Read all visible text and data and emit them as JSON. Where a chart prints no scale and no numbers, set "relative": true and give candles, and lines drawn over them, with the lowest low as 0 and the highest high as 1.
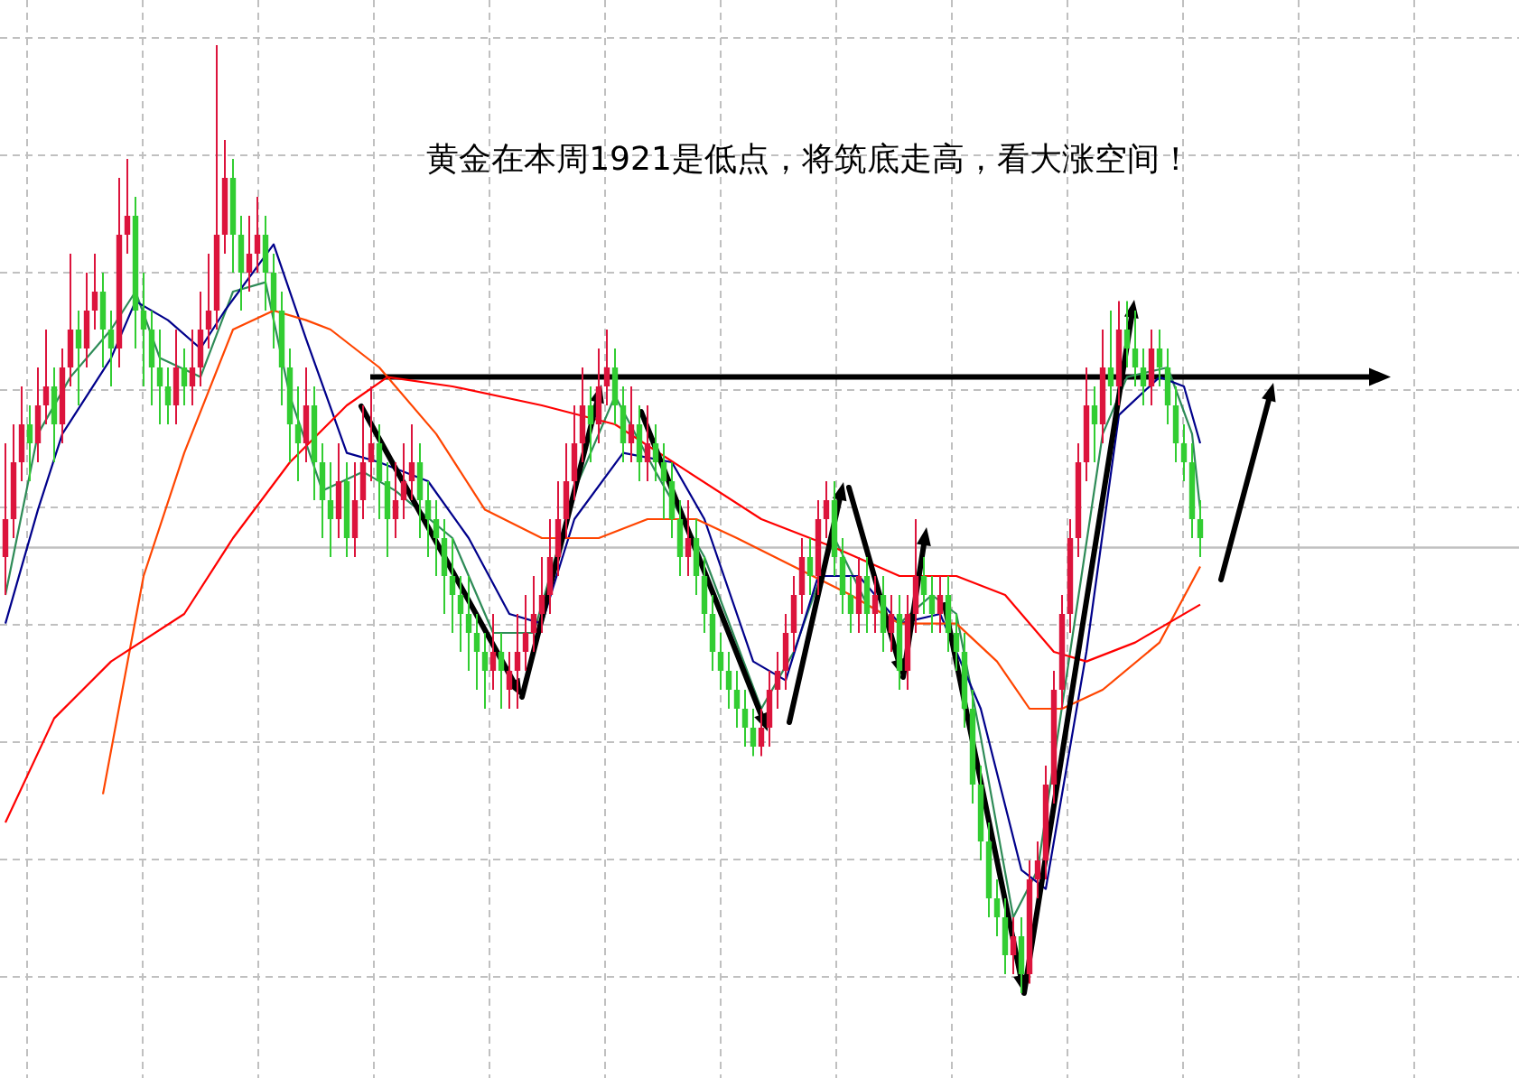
{
  "chart_data": {
    "type": "candlestick",
    "title": "黄金在本周1921是低点，将筑底走高，看大涨空间！",
    "relative": true,
    "grid": true,
    "categories": [
      null,
      null,
      null,
      null,
      null,
      null,
      null,
      null,
      null,
      null,
      null,
      null,
      null,
      null,
      null,
      null,
      null,
      null,
      null,
      null,
      null,
      null,
      null,
      null,
      null,
      null,
      null,
      null,
      null,
      null,
      null,
      null,
      null,
      null,
      null,
      null,
      null,
      null,
      null,
      null,
      null,
      null,
      null,
      null,
      null,
      null,
      null,
      null,
      null,
      null,
      null,
      null,
      null,
      null,
      null,
      null,
      null,
      null,
      null,
      null,
      null,
      null,
      null,
      null,
      null,
      null,
      null,
      null,
      null,
      null,
      null,
      null,
      null,
      null,
      null,
      null,
      null,
      null,
      null,
      null,
      null,
      null,
      null,
      null,
      null,
      null,
      null,
      null,
      null,
      null,
      null,
      null,
      null,
      null,
      null,
      null,
      null,
      null,
      null,
      null,
      null,
      null,
      null,
      null,
      null,
      null,
      null,
      null,
      null,
      null,
      null,
      null,
      null,
      null,
      null,
      null,
      null,
      null,
      null,
      null,
      null,
      null,
      null,
      null,
      null,
      null,
      null,
      null,
      null,
      null,
      null,
      null,
      null,
      null,
      null,
      null,
      null,
      null,
      null,
      null,
      null,
      null,
      null,
      null,
      null,
      null,
      null,
      null
    ],
    "ohlc": [
      [
        0.46,
        0.58,
        0.42,
        0.5
      ],
      [
        0.5,
        0.6,
        0.48,
        0.56
      ],
      [
        0.56,
        0.64,
        0.54,
        0.6
      ],
      [
        0.6,
        0.62,
        0.54,
        0.58
      ],
      [
        0.58,
        0.66,
        0.56,
        0.62
      ],
      [
        0.62,
        0.7,
        0.6,
        0.64
      ],
      [
        0.64,
        0.66,
        0.56,
        0.6
      ],
      [
        0.6,
        0.68,
        0.58,
        0.66
      ],
      [
        0.66,
        0.78,
        0.64,
        0.7
      ],
      [
        0.7,
        0.72,
        0.62,
        0.68
      ],
      [
        0.68,
        0.76,
        0.66,
        0.72
      ],
      [
        0.72,
        0.78,
        0.7,
        0.74
      ],
      [
        0.74,
        0.76,
        0.66,
        0.7
      ],
      [
        0.7,
        0.72,
        0.64,
        0.68
      ],
      [
        0.68,
        0.86,
        0.66,
        0.8
      ],
      [
        0.8,
        0.88,
        0.78,
        0.82
      ],
      [
        0.82,
        0.84,
        0.68,
        0.72
      ],
      [
        0.72,
        0.76,
        0.64,
        0.7
      ],
      [
        0.7,
        0.72,
        0.62,
        0.66
      ],
      [
        0.66,
        0.7,
        0.6,
        0.64
      ],
      [
        0.64,
        0.66,
        0.6,
        0.62
      ],
      [
        0.62,
        0.7,
        0.6,
        0.66
      ],
      [
        0.66,
        0.68,
        0.62,
        0.64
      ],
      [
        0.64,
        0.7,
        0.62,
        0.66
      ],
      [
        0.66,
        0.74,
        0.64,
        0.7
      ],
      [
        0.7,
        0.78,
        0.68,
        0.72
      ],
      [
        0.72,
        1.0,
        0.7,
        0.8
      ],
      [
        0.8,
        0.9,
        0.78,
        0.86
      ],
      [
        0.86,
        0.88,
        0.76,
        0.8
      ],
      [
        0.8,
        0.82,
        0.72,
        0.76
      ],
      [
        0.76,
        0.82,
        0.74,
        0.78
      ],
      [
        0.78,
        0.84,
        0.76,
        0.8
      ],
      [
        0.8,
        0.82,
        0.72,
        0.76
      ],
      [
        0.76,
        0.78,
        0.68,
        0.72
      ],
      [
        0.72,
        0.74,
        0.62,
        0.66
      ],
      [
        0.66,
        0.68,
        0.56,
        0.6
      ],
      [
        0.6,
        0.64,
        0.54,
        0.58
      ],
      [
        0.58,
        0.66,
        0.56,
        0.62
      ],
      [
        0.62,
        0.64,
        0.52,
        0.56
      ],
      [
        0.56,
        0.58,
        0.48,
        0.52
      ],
      [
        0.52,
        0.56,
        0.46,
        0.5
      ],
      [
        0.5,
        0.58,
        0.48,
        0.54
      ],
      [
        0.54,
        0.56,
        0.46,
        0.48
      ],
      [
        0.48,
        0.56,
        0.46,
        0.52
      ],
      [
        0.52,
        0.62,
        0.5,
        0.56
      ],
      [
        0.56,
        0.64,
        0.54,
        0.58
      ],
      [
        0.58,
        0.6,
        0.5,
        0.54
      ],
      [
        0.54,
        0.56,
        0.46,
        0.5
      ],
      [
        0.5,
        0.56,
        0.48,
        0.52
      ],
      [
        0.52,
        0.58,
        0.5,
        0.54
      ],
      [
        0.54,
        0.6,
        0.52,
        0.56
      ],
      [
        0.56,
        0.58,
        0.48,
        0.52
      ],
      [
        0.52,
        0.54,
        0.46,
        0.5
      ],
      [
        0.5,
        0.52,
        0.44,
        0.48
      ],
      [
        0.48,
        0.5,
        0.4,
        0.44
      ],
      [
        0.44,
        0.48,
        0.38,
        0.42
      ],
      [
        0.42,
        0.44,
        0.36,
        0.4
      ],
      [
        0.4,
        0.44,
        0.34,
        0.38
      ],
      [
        0.38,
        0.4,
        0.32,
        0.36
      ],
      [
        0.36,
        0.38,
        0.3,
        0.34
      ],
      [
        0.34,
        0.4,
        0.32,
        0.36
      ],
      [
        0.36,
        0.38,
        0.3,
        0.34
      ],
      [
        0.32,
        0.36,
        0.3,
        0.34
      ],
      [
        0.34,
        0.4,
        0.3,
        0.36
      ],
      [
        0.36,
        0.42,
        0.34,
        0.38
      ],
      [
        0.38,
        0.44,
        0.36,
        0.4
      ],
      [
        0.4,
        0.46,
        0.38,
        0.42
      ],
      [
        0.42,
        0.5,
        0.4,
        0.46
      ],
      [
        0.46,
        0.54,
        0.44,
        0.5
      ],
      [
        0.5,
        0.58,
        0.48,
        0.54
      ],
      [
        0.54,
        0.62,
        0.52,
        0.58
      ],
      [
        0.58,
        0.66,
        0.56,
        0.62
      ],
      [
        0.62,
        0.64,
        0.56,
        0.6
      ],
      [
        0.6,
        0.68,
        0.58,
        0.64
      ],
      [
        0.64,
        0.7,
        0.62,
        0.66
      ],
      [
        0.66,
        0.68,
        0.6,
        0.62
      ],
      [
        0.62,
        0.64,
        0.56,
        0.58
      ],
      [
        0.58,
        0.64,
        0.56,
        0.6
      ],
      [
        0.6,
        0.62,
        0.54,
        0.56
      ],
      [
        0.56,
        0.62,
        0.54,
        0.58
      ],
      [
        0.58,
        0.6,
        0.54,
        0.56
      ],
      [
        0.56,
        0.58,
        0.5,
        0.54
      ],
      [
        0.54,
        0.56,
        0.48,
        0.5
      ],
      [
        0.5,
        0.52,
        0.44,
        0.46
      ],
      [
        0.46,
        0.52,
        0.44,
        0.48
      ],
      [
        0.48,
        0.5,
        0.42,
        0.44
      ],
      [
        0.44,
        0.46,
        0.38,
        0.4
      ],
      [
        0.4,
        0.42,
        0.34,
        0.36
      ],
      [
        0.36,
        0.38,
        0.32,
        0.34
      ],
      [
        0.34,
        0.36,
        0.3,
        0.32
      ],
      [
        0.32,
        0.34,
        0.28,
        0.3
      ],
      [
        0.3,
        0.32,
        0.26,
        0.28
      ],
      [
        0.28,
        0.3,
        0.25,
        0.26
      ],
      [
        0.26,
        0.3,
        0.25,
        0.28
      ],
      [
        0.28,
        0.34,
        0.26,
        0.32
      ],
      [
        0.32,
        0.36,
        0.3,
        0.34
      ],
      [
        0.34,
        0.4,
        0.32,
        0.38
      ],
      [
        0.38,
        0.44,
        0.36,
        0.42
      ],
      [
        0.42,
        0.48,
        0.4,
        0.46
      ],
      [
        0.46,
        0.48,
        0.42,
        0.44
      ],
      [
        0.44,
        0.52,
        0.42,
        0.5
      ],
      [
        0.5,
        0.54,
        0.48,
        0.52
      ],
      [
        0.52,
        0.54,
        0.44,
        0.46
      ],
      [
        0.46,
        0.48,
        0.4,
        0.42
      ],
      [
        0.42,
        0.44,
        0.38,
        0.4
      ],
      [
        0.4,
        0.46,
        0.38,
        0.44
      ],
      [
        0.44,
        0.46,
        0.38,
        0.4
      ],
      [
        0.4,
        0.44,
        0.38,
        0.42
      ],
      [
        0.42,
        0.44,
        0.36,
        0.38
      ],
      [
        0.38,
        0.42,
        0.36,
        0.4
      ],
      [
        0.4,
        0.42,
        0.32,
        0.34
      ],
      [
        0.34,
        0.42,
        0.32,
        0.4
      ],
      [
        0.4,
        0.5,
        0.38,
        0.44
      ],
      [
        0.44,
        0.46,
        0.4,
        0.42
      ],
      [
        0.42,
        0.44,
        0.38,
        0.4
      ],
      [
        0.4,
        0.44,
        0.38,
        0.42
      ],
      [
        0.42,
        0.44,
        0.36,
        0.38
      ],
      [
        0.38,
        0.4,
        0.34,
        0.36
      ],
      [
        0.36,
        0.38,
        0.28,
        0.3
      ],
      [
        0.3,
        0.32,
        0.2,
        0.22
      ],
      [
        0.22,
        0.24,
        0.14,
        0.16
      ],
      [
        0.16,
        0.18,
        0.08,
        0.1
      ],
      [
        0.1,
        0.12,
        0.06,
        0.08
      ],
      [
        0.08,
        0.1,
        0.02,
        0.04
      ],
      [
        0.04,
        0.08,
        0.02,
        0.06
      ],
      [
        0.06,
        0.08,
        0.0,
        0.02
      ],
      [
        0.02,
        0.14,
        0.01,
        0.12
      ],
      [
        0.12,
        0.16,
        0.1,
        0.14
      ],
      [
        0.14,
        0.24,
        0.12,
        0.22
      ],
      [
        0.22,
        0.34,
        0.2,
        0.32
      ],
      [
        0.32,
        0.42,
        0.3,
        0.4
      ],
      [
        0.4,
        0.5,
        0.38,
        0.48
      ],
      [
        0.48,
        0.58,
        0.46,
        0.56
      ],
      [
        0.56,
        0.66,
        0.54,
        0.62
      ],
      [
        0.62,
        0.64,
        0.56,
        0.6
      ],
      [
        0.6,
        0.7,
        0.58,
        0.66
      ],
      [
        0.66,
        0.72,
        0.62,
        0.64
      ],
      [
        0.64,
        0.73,
        0.62,
        0.7
      ],
      [
        0.7,
        0.73,
        0.66,
        0.68
      ],
      [
        0.68,
        0.72,
        0.64,
        0.66
      ],
      [
        0.66,
        0.68,
        0.62,
        0.64
      ],
      [
        0.64,
        0.7,
        0.62,
        0.68
      ],
      [
        0.68,
        0.7,
        0.64,
        0.66
      ],
      [
        0.66,
        0.68,
        0.6,
        0.62
      ],
      [
        0.62,
        0.64,
        0.56,
        0.58
      ],
      [
        0.58,
        0.6,
        0.54,
        0.56
      ],
      [
        0.56,
        0.58,
        0.48,
        0.5
      ],
      [
        0.5,
        0.52,
        0.46,
        0.48
      ]
    ],
    "series": [
      {
        "type": "line",
        "color": "#2e8b57",
        "values": [
          0.42,
          null,
          null,
          null,
          0.59,
          null,
          null,
          null,
          0.65,
          null,
          null,
          null,
          null,
          0.7,
          null,
          null,
          0.74,
          null,
          null,
          0.67,
          null,
          null,
          null,
          null,
          0.65,
          null,
          null,
          null,
          0.74,
          null,
          null,
          null,
          0.75,
          null,
          null,
          0.63,
          null,
          null,
          null,
          0.53,
          null,
          null,
          null,
          null,
          0.55,
          null,
          null,
          null,
          0.53,
          null,
          null,
          null,
          null,
          null,
          null,
          0.48,
          null,
          null,
          null,
          null,
          0.38,
          null,
          null,
          null,
          null,
          0.38,
          null,
          null,
          null,
          null,
          0.53,
          null,
          null,
          null,
          null,
          0.63,
          null,
          null,
          null,
          null,
          0.55,
          null,
          null,
          null,
          null,
          null,
          0.46,
          null,
          null,
          null,
          null,
          null,
          null,
          0.3,
          null,
          null,
          null,
          0.36,
          null,
          null,
          null,
          null,
          0.48,
          null,
          null,
          null,
          0.41,
          null,
          null,
          null,
          0.39,
          null,
          null,
          null,
          0.42,
          null,
          null,
          0.4,
          null,
          null,
          0.27,
          null,
          null,
          null,
          0.08,
          null,
          null,
          0.13,
          null,
          null,
          null,
          null,
          null,
          null,
          null,
          0.59,
          null,
          null,
          0.65,
          null,
          null,
          null,
          null,
          0.66,
          null,
          null,
          0.59,
          0.51
        ]
      },
      {
        "type": "line",
        "color": "#00008b",
        "values": [
          0.39,
          null,
          null,
          null,
          0.51,
          null,
          null,
          0.59,
          null,
          null,
          null,
          null,
          null,
          0.67,
          null,
          null,
          0.73,
          null,
          null,
          null,
          0.71,
          null,
          null,
          null,
          0.68,
          null,
          null,
          0.72,
          null,
          null,
          null,
          null,
          null,
          0.79,
          null,
          null,
          null,
          0.69,
          null,
          null,
          null,
          null,
          0.57,
          null,
          null,
          null,
          0.56,
          null,
          null,
          null,
          null,
          null,
          0.54,
          null,
          null,
          null,
          null,
          0.48,
          null,
          null,
          null,
          null,
          0.4,
          null,
          null,
          null,
          0.39,
          null,
          null,
          null,
          0.5,
          null,
          null,
          null,
          null,
          null,
          0.57,
          null,
          null,
          null,
          null,
          null,
          0.56,
          null,
          null,
          null,
          0.5,
          null,
          null,
          null,
          null,
          null,
          0.35,
          null,
          null,
          null,
          0.33,
          null,
          null,
          null,
          0.44,
          null,
          null,
          null,
          null,
          0.44,
          null,
          null,
          null,
          null,
          0.39,
          null,
          null,
          null,
          null,
          0.4,
          null,
          null,
          null,
          null,
          0.3,
          null,
          null,
          null,
          null,
          0.13,
          null,
          null,
          0.11,
          null,
          null,
          null,
          null,
          0.36,
          null,
          null,
          null,
          0.61,
          null,
          null,
          null,
          null,
          0.65,
          null,
          null,
          0.64,
          null,
          0.58
        ]
      },
      {
        "type": "line",
        "color": "#ff4500",
        "values": [
          null,
          null,
          null,
          null,
          null,
          null,
          null,
          null,
          null,
          null,
          null,
          null,
          0.21,
          null,
          null,
          null,
          null,
          0.44,
          null,
          null,
          null,
          null,
          0.57,
          null,
          null,
          null,
          null,
          null,
          0.7,
          null,
          null,
          null,
          null,
          0.72,
          null,
          null,
          null,
          0.71,
          null,
          null,
          0.7,
          null,
          null,
          null,
          null,
          null,
          0.66,
          null,
          null,
          null,
          null,
          null,
          null,
          0.59,
          null,
          null,
          null,
          null,
          null,
          0.51,
          null,
          null,
          null,
          null,
          null,
          null,
          0.48,
          null,
          null,
          null,
          null,
          null,
          null,
          0.48,
          null,
          null,
          null,
          null,
          null,
          0.5,
          null,
          null,
          null,
          null,
          null,
          0.5,
          null,
          null,
          null,
          null,
          0.48,
          null,
          null,
          null,
          null,
          null,
          null,
          0.45,
          null,
          null,
          null,
          null,
          null,
          null,
          0.42,
          null,
          null,
          null,
          null,
          null,
          0.39,
          null,
          null,
          null,
          null,
          null,
          null,
          0.39,
          null,
          null,
          null,
          null,
          0.35,
          null,
          null,
          null,
          0.3,
          null,
          null,
          null,
          0.3,
          null,
          null,
          null,
          null,
          0.32,
          null,
          null,
          null,
          null,
          null,
          null,
          0.37,
          null,
          null,
          null,
          null,
          0.45
        ]
      },
      {
        "type": "line",
        "color": "#ff0000",
        "values": [
          0.18,
          null,
          null,
          null,
          null,
          null,
          0.29,
          null,
          null,
          null,
          null,
          null,
          null,
          0.35,
          null,
          null,
          null,
          null,
          null,
          null,
          null,
          null,
          0.4,
          null,
          null,
          null,
          null,
          null,
          0.48,
          null,
          null,
          null,
          null,
          null,
          null,
          0.56,
          null,
          null,
          null,
          null,
          null,
          null,
          0.62,
          null,
          null,
          null,
          null,
          0.65,
          null,
          null,
          null,
          null,
          null,
          null,
          null,
          0.64,
          null,
          null,
          null,
          null,
          null,
          null,
          null,
          null,
          null,
          null,
          0.62,
          null,
          null,
          null,
          null,
          null,
          null,
          null,
          null,
          0.6,
          null,
          null,
          null,
          null,
          null,
          null,
          null,
          null,
          0.55,
          null,
          null,
          null,
          null,
          null,
          null,
          null,
          null,
          0.5,
          null,
          null,
          null,
          null,
          null,
          null,
          null,
          null,
          0.47,
          null,
          null,
          null,
          null,
          null,
          null,
          null,
          0.44,
          null,
          null,
          null,
          null,
          null,
          null,
          0.44,
          null,
          null,
          null,
          null,
          null,
          0.42,
          null,
          null,
          null,
          null,
          null,
          0.36,
          null,
          null,
          null,
          0.35,
          null,
          null,
          null,
          null,
          null,
          0.37,
          null,
          null,
          null,
          null,
          null,
          null,
          null,
          0.41
        ]
      }
    ],
    "ref_lines": [
      {
        "axis": "y",
        "value": 0.47,
        "color": "#c0c0c0"
      },
      {
        "axis": "y",
        "value": 0.65,
        "color": "#000000"
      }
    ]
  }
}
